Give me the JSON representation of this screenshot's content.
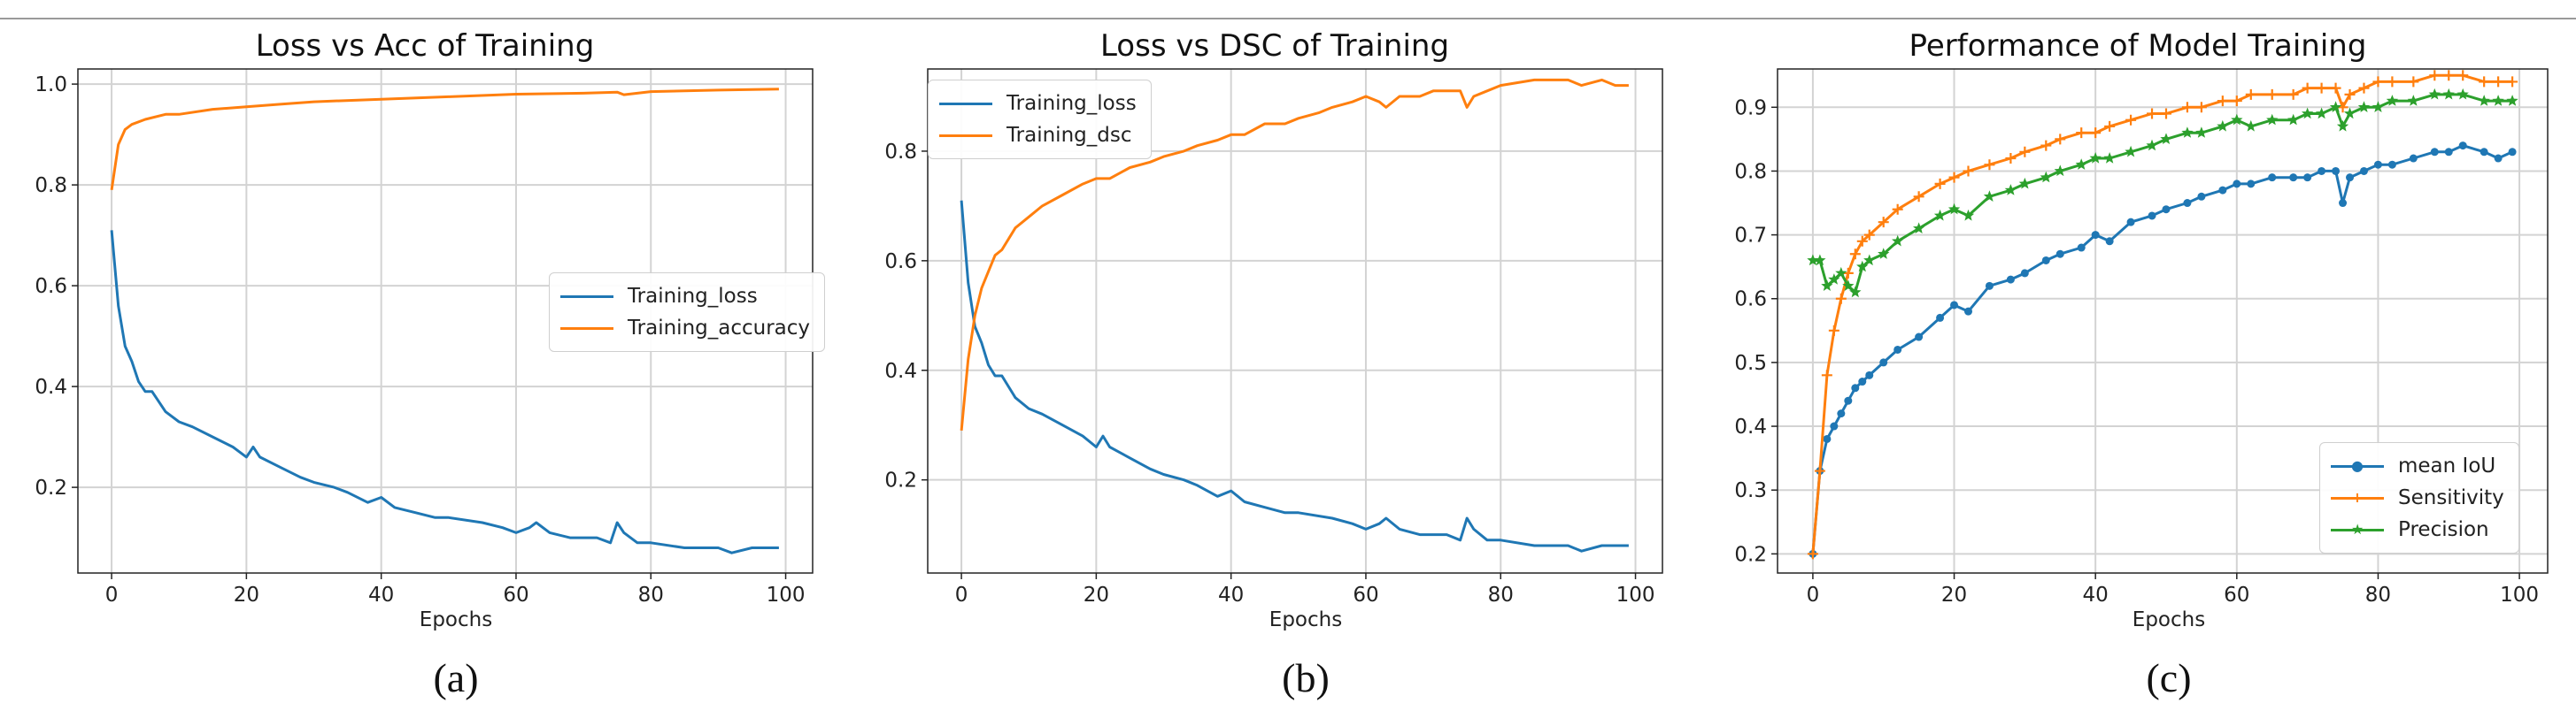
{
  "colors": {
    "blue": "#1f77b4",
    "orange": "#ff7f0e",
    "green": "#2ca02c",
    "grid": "#d3d3d3"
  },
  "chart_data": [
    {
      "type": "line",
      "title": "Loss vs Acc of Training",
      "subtitle": "(a)",
      "xlabel": "Epochs",
      "ylabel": "",
      "xlim": [
        -5,
        104
      ],
      "ylim": [
        0.03,
        1.03
      ],
      "xticks": [
        0,
        20,
        40,
        60,
        80,
        100
      ],
      "yticks": [
        0.2,
        0.4,
        0.6,
        0.8,
        1.0
      ],
      "ytick_labels": [
        "0.2",
        "0.4",
        "0.6",
        "0.8",
        "1.0"
      ],
      "grid": true,
      "legend_position": "center-right",
      "series": [
        {
          "name": "Training_loss",
          "color": "#1f77b4",
          "marker": "",
          "x": [
            0,
            1,
            2,
            3,
            4,
            5,
            6,
            8,
            10,
            12,
            15,
            18,
            20,
            21,
            22,
            25,
            28,
            30,
            33,
            35,
            38,
            40,
            42,
            45,
            48,
            50,
            55,
            58,
            60,
            62,
            63,
            65,
            68,
            70,
            72,
            74,
            75,
            76,
            78,
            80,
            85,
            88,
            90,
            92,
            95,
            97,
            99
          ],
          "values": [
            0.71,
            0.56,
            0.48,
            0.45,
            0.41,
            0.39,
            0.39,
            0.35,
            0.33,
            0.32,
            0.3,
            0.28,
            0.26,
            0.28,
            0.26,
            0.24,
            0.22,
            0.21,
            0.2,
            0.19,
            0.17,
            0.18,
            0.16,
            0.15,
            0.14,
            0.14,
            0.13,
            0.12,
            0.11,
            0.12,
            0.13,
            0.11,
            0.1,
            0.1,
            0.1,
            0.09,
            0.13,
            0.11,
            0.09,
            0.09,
            0.08,
            0.08,
            0.08,
            0.07,
            0.08,
            0.08,
            0.08
          ]
        },
        {
          "name": "Training_accuracy",
          "color": "#ff7f0e",
          "marker": "",
          "x": [
            0,
            1,
            2,
            3,
            5,
            8,
            10,
            15,
            20,
            25,
            30,
            40,
            50,
            60,
            70,
            75,
            76,
            80,
            90,
            99
          ],
          "values": [
            0.79,
            0.88,
            0.91,
            0.92,
            0.93,
            0.94,
            0.94,
            0.95,
            0.955,
            0.96,
            0.965,
            0.97,
            0.975,
            0.98,
            0.982,
            0.984,
            0.979,
            0.985,
            0.988,
            0.99
          ]
        }
      ]
    },
    {
      "type": "line",
      "title": "Loss vs DSC of Training",
      "subtitle": "(b)",
      "xlabel": "Epochs",
      "ylabel": "",
      "xlim": [
        -5,
        104
      ],
      "ylim": [
        0.03,
        0.95
      ],
      "xticks": [
        0,
        20,
        40,
        60,
        80,
        100
      ],
      "yticks": [
        0.2,
        0.4,
        0.6,
        0.8
      ],
      "ytick_labels": [
        "0.2",
        "0.4",
        "0.6",
        "0.8"
      ],
      "grid": true,
      "legend_position": "top-left",
      "series": [
        {
          "name": "Training_loss",
          "color": "#1f77b4",
          "marker": "",
          "x": [
            0,
            1,
            2,
            3,
            4,
            5,
            6,
            8,
            10,
            12,
            15,
            18,
            20,
            21,
            22,
            25,
            28,
            30,
            33,
            35,
            38,
            40,
            42,
            45,
            48,
            50,
            55,
            58,
            60,
            62,
            63,
            65,
            68,
            70,
            72,
            74,
            75,
            76,
            78,
            80,
            85,
            88,
            90,
            92,
            95,
            97,
            99
          ],
          "values": [
            0.71,
            0.56,
            0.48,
            0.45,
            0.41,
            0.39,
            0.39,
            0.35,
            0.33,
            0.32,
            0.3,
            0.28,
            0.26,
            0.28,
            0.26,
            0.24,
            0.22,
            0.21,
            0.2,
            0.19,
            0.17,
            0.18,
            0.16,
            0.15,
            0.14,
            0.14,
            0.13,
            0.12,
            0.11,
            0.12,
            0.13,
            0.11,
            0.1,
            0.1,
            0.1,
            0.09,
            0.13,
            0.11,
            0.09,
            0.09,
            0.08,
            0.08,
            0.08,
            0.07,
            0.08,
            0.08,
            0.08
          ]
        },
        {
          "name": "Training_dsc",
          "color": "#ff7f0e",
          "marker": "",
          "x": [
            0,
            1,
            2,
            3,
            4,
            5,
            6,
            8,
            10,
            12,
            15,
            18,
            20,
            22,
            25,
            28,
            30,
            33,
            35,
            38,
            40,
            42,
            45,
            48,
            50,
            53,
            55,
            58,
            60,
            62,
            63,
            65,
            68,
            70,
            72,
            74,
            75,
            76,
            78,
            80,
            85,
            88,
            90,
            92,
            95,
            97,
            99
          ],
          "values": [
            0.29,
            0.42,
            0.5,
            0.55,
            0.58,
            0.61,
            0.62,
            0.66,
            0.68,
            0.7,
            0.72,
            0.74,
            0.75,
            0.75,
            0.77,
            0.78,
            0.79,
            0.8,
            0.81,
            0.82,
            0.83,
            0.83,
            0.85,
            0.85,
            0.86,
            0.87,
            0.88,
            0.89,
            0.9,
            0.89,
            0.88,
            0.9,
            0.9,
            0.91,
            0.91,
            0.91,
            0.88,
            0.9,
            0.91,
            0.92,
            0.93,
            0.93,
            0.93,
            0.92,
            0.93,
            0.92,
            0.92
          ]
        }
      ]
    },
    {
      "type": "line",
      "title": "Performance of Model Training",
      "subtitle": "(c)",
      "xlabel": "Epochs",
      "ylabel": "",
      "xlim": [
        -5,
        104
      ],
      "ylim": [
        0.17,
        0.96
      ],
      "xticks": [
        0,
        20,
        40,
        60,
        80,
        100
      ],
      "yticks": [
        0.2,
        0.3,
        0.4,
        0.5,
        0.6,
        0.7,
        0.8,
        0.9
      ],
      "ytick_labels": [
        "0.2",
        "0.3",
        "0.4",
        "0.5",
        "0.6",
        "0.7",
        "0.8",
        "0.9"
      ],
      "grid": true,
      "legend_position": "bottom-right",
      "series": [
        {
          "name": "mean IoU",
          "color": "#1f77b4",
          "marker": "dot",
          "x": [
            0,
            1,
            2,
            3,
            4,
            5,
            6,
            7,
            8,
            10,
            12,
            15,
            18,
            20,
            22,
            25,
            28,
            30,
            33,
            35,
            38,
            40,
            42,
            45,
            48,
            50,
            53,
            55,
            58,
            60,
            62,
            65,
            68,
            70,
            72,
            74,
            75,
            76,
            78,
            80,
            82,
            85,
            88,
            90,
            92,
            95,
            97,
            99
          ],
          "values": [
            0.2,
            0.33,
            0.38,
            0.4,
            0.42,
            0.44,
            0.46,
            0.47,
            0.48,
            0.5,
            0.52,
            0.54,
            0.57,
            0.59,
            0.58,
            0.62,
            0.63,
            0.64,
            0.66,
            0.67,
            0.68,
            0.7,
            0.69,
            0.72,
            0.73,
            0.74,
            0.75,
            0.76,
            0.77,
            0.78,
            0.78,
            0.79,
            0.79,
            0.79,
            0.8,
            0.8,
            0.75,
            0.79,
            0.8,
            0.81,
            0.81,
            0.82,
            0.83,
            0.83,
            0.84,
            0.83,
            0.82,
            0.83
          ]
        },
        {
          "name": "Sensitivity",
          "color": "#ff7f0e",
          "marker": "plus",
          "x": [
            0,
            1,
            2,
            3,
            4,
            5,
            6,
            7,
            8,
            10,
            12,
            15,
            18,
            20,
            22,
            25,
            28,
            30,
            33,
            35,
            38,
            40,
            42,
            45,
            48,
            50,
            53,
            55,
            58,
            60,
            62,
            65,
            68,
            70,
            72,
            74,
            75,
            76,
            78,
            80,
            82,
            85,
            88,
            90,
            92,
            95,
            97,
            99
          ],
          "values": [
            0.2,
            0.33,
            0.48,
            0.55,
            0.6,
            0.64,
            0.67,
            0.69,
            0.7,
            0.72,
            0.74,
            0.76,
            0.78,
            0.79,
            0.8,
            0.81,
            0.82,
            0.83,
            0.84,
            0.85,
            0.86,
            0.86,
            0.87,
            0.88,
            0.89,
            0.89,
            0.9,
            0.9,
            0.91,
            0.91,
            0.92,
            0.92,
            0.92,
            0.93,
            0.93,
            0.93,
            0.9,
            0.92,
            0.93,
            0.94,
            0.94,
            0.94,
            0.95,
            0.95,
            0.95,
            0.94,
            0.94,
            0.94
          ]
        },
        {
          "name": "Precision",
          "color": "#2ca02c",
          "marker": "star",
          "x": [
            0,
            1,
            2,
            3,
            4,
            5,
            6,
            7,
            8,
            10,
            12,
            15,
            18,
            20,
            22,
            25,
            28,
            30,
            33,
            35,
            38,
            40,
            42,
            45,
            48,
            50,
            53,
            55,
            58,
            60,
            62,
            65,
            68,
            70,
            72,
            74,
            75,
            76,
            78,
            80,
            82,
            85,
            88,
            90,
            92,
            95,
            97,
            99
          ],
          "values": [
            0.66,
            0.66,
            0.62,
            0.63,
            0.64,
            0.62,
            0.61,
            0.65,
            0.66,
            0.67,
            0.69,
            0.71,
            0.73,
            0.74,
            0.73,
            0.76,
            0.77,
            0.78,
            0.79,
            0.8,
            0.81,
            0.82,
            0.82,
            0.83,
            0.84,
            0.85,
            0.86,
            0.86,
            0.87,
            0.88,
            0.87,
            0.88,
            0.88,
            0.89,
            0.89,
            0.9,
            0.87,
            0.89,
            0.9,
            0.9,
            0.91,
            0.91,
            0.92,
            0.92,
            0.92,
            0.91,
            0.91,
            0.91
          ]
        }
      ]
    }
  ]
}
